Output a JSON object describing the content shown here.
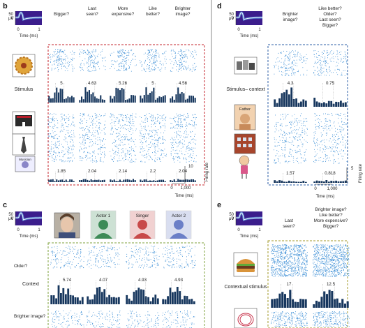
{
  "panels": {
    "b": {
      "label": "b",
      "columns": [
        "Bigger?",
        "Last\nseen?",
        "More\nexpensive?",
        "Like\nbetter?",
        "Brighter\nimage?"
      ],
      "stimulus_label": "Stimulus",
      "stimulus_color": "#c4262e",
      "values_top": [
        "5",
        "4.63",
        "5.26",
        "5",
        "4.56"
      ],
      "values_bottom": [
        "1.85",
        "2.04",
        "2.14",
        "2.2",
        "2.04"
      ],
      "badge": "Musician",
      "rate_tick": "10",
      "rate_label": "Firing rate",
      "time_ticks": [
        "0",
        "1,000"
      ],
      "time_label": "Time (ms)",
      "waveform": {
        "y_label": "μV",
        "y_ticks": [
          "50",
          "0"
        ],
        "x_ticks": [
          "0",
          "1"
        ],
        "x_label": "Time (ms)"
      }
    },
    "c": {
      "label": "c",
      "faces": [
        "Actor 1",
        "Singer",
        "Actor 2"
      ],
      "face_colors": [
        "#3d8b57",
        "#c84a4a",
        "#6b7fc7"
      ],
      "rows": [
        "Older?",
        "Brighter\nimage?"
      ],
      "context_label": "Context",
      "context_color": "#7fa23c",
      "values": [
        "5.74",
        "4.07",
        "4.93",
        "4.93"
      ],
      "waveform": {
        "y_label": "μV",
        "y_ticks": [
          "50",
          "0"
        ],
        "x_ticks": [
          "0",
          "1"
        ],
        "x_label": "Time (ms)"
      }
    },
    "d": {
      "label": "d",
      "columns": [
        "Brighter\nimage?",
        "Like better?\nOlder?\nLast seen?\nBigger?"
      ],
      "context_label": "Stimulus–\ncontext",
      "context_color": "#2e5fa7",
      "values_top": [
        "4.3",
        "0.75"
      ],
      "values_bottom": [
        "1.57",
        "0.818"
      ],
      "badge": "Father",
      "rate_tick": "5",
      "rate_label": "Firing rate",
      "time_ticks": [
        "0",
        "1,000"
      ],
      "time_label": "Time (ms)",
      "waveform": {
        "y_label": "μV",
        "y_ticks": [
          "50",
          "0"
        ],
        "x_ticks": [
          "0",
          "1"
        ],
        "x_label": "Time (ms)"
      }
    },
    "e": {
      "label": "e",
      "columns": [
        "Last\nseen?",
        "Brighter image?\nLike better?\nMore expensive?\nBigger?"
      ],
      "stimulus_label": "Contextual\nstimulus",
      "stimulus_color": "#a39a2a",
      "values": [
        "17",
        "12.5"
      ],
      "waveform": {
        "y_label": "μV",
        "y_ticks": [
          "50",
          "0"
        ],
        "x_ticks": [
          "0",
          "1"
        ],
        "x_label": "Time (ms)"
      }
    }
  },
  "colors": {
    "raster": "#3d8fd6",
    "bar": "#17375e",
    "wave_bg": "#3b1d8c",
    "divider": "#555555"
  }
}
